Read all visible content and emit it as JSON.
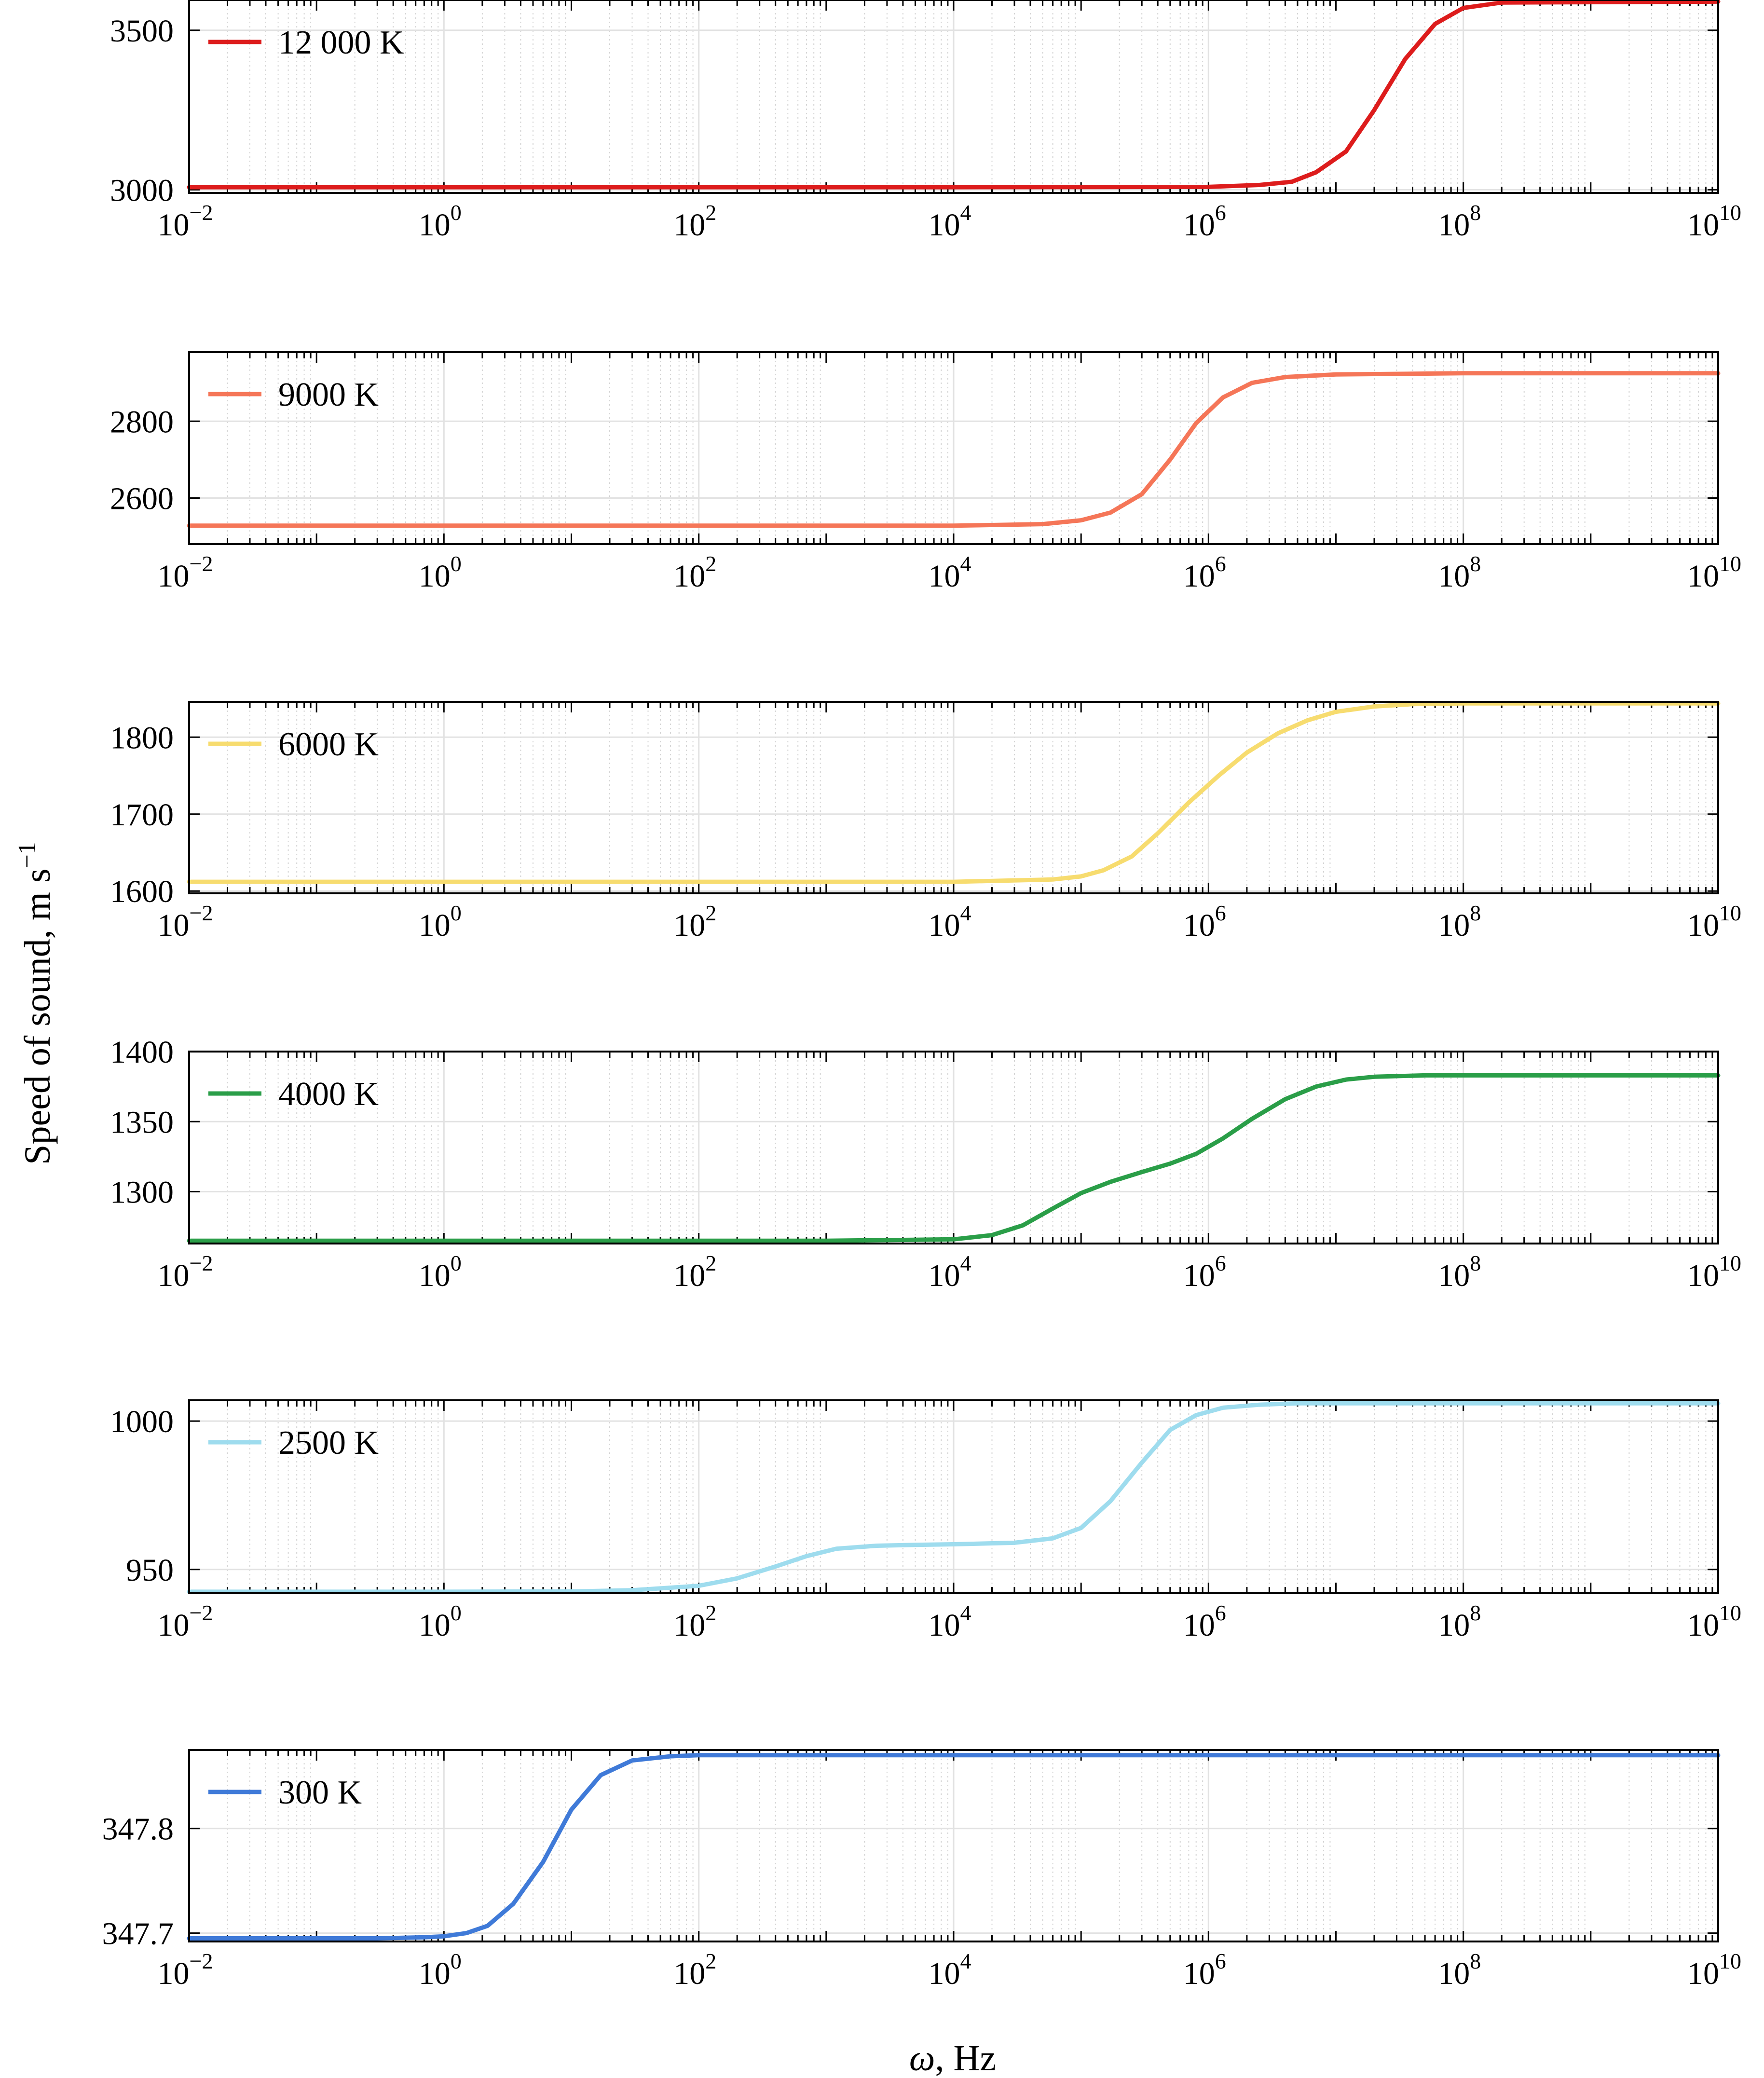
{
  "figure": {
    "ylabel": "Speed of sound, m s",
    "ylabel_sup": "−1",
    "xlabel_symbol": "ω",
    "xlabel_unit": ", Hz"
  },
  "chart_data": [
    {
      "type": "line",
      "legend": "12 000 K",
      "color": "#dd1c1c",
      "xscale": "log",
      "xlim": [
        0.01,
        10000000000
      ],
      "ylim": [
        2990,
        3595
      ],
      "yticks": [
        3000,
        3500
      ],
      "ytick_labels": [
        "3000",
        "3500"
      ],
      "x": [
        0.01,
        1,
        100,
        10000,
        1000000,
        2500000,
        4500000,
        7000000,
        12000000,
        20000000,
        35000000,
        60000000,
        100000000,
        200000000,
        10000000000
      ],
      "y": [
        3008,
        3008,
        3008,
        3008,
        3009,
        3015,
        3025,
        3055,
        3120,
        3250,
        3410,
        3520,
        3570,
        3587,
        3590
      ]
    },
    {
      "type": "line",
      "legend": "9000 K",
      "color": "#f57658",
      "xscale": "log",
      "xlim": [
        0.01,
        10000000000
      ],
      "ylim": [
        2480,
        2980
      ],
      "yticks": [
        2600,
        2800
      ],
      "ytick_labels": [
        "2600",
        "2800"
      ],
      "x": [
        0.01,
        1,
        100,
        10000,
        50000,
        100000,
        170000,
        300000,
        500000,
        800000,
        1300000,
        2200000,
        4000000,
        10000000,
        100000000,
        10000000000
      ],
      "y": [
        2528,
        2528,
        2528,
        2528,
        2532,
        2542,
        2562,
        2610,
        2700,
        2795,
        2862,
        2900,
        2915,
        2922,
        2925,
        2925
      ]
    },
    {
      "type": "line",
      "legend": "6000 K",
      "color": "#f7dc6f",
      "xscale": "log",
      "xlim": [
        0.01,
        10000000000
      ],
      "ylim": [
        1597,
        1846
      ],
      "yticks": [
        1600,
        1700,
        1800
      ],
      "ytick_labels": [
        "1600",
        "1700",
        "1800"
      ],
      "x": [
        0.01,
        1,
        100,
        10000,
        60000,
        100000,
        150000,
        250000,
        400000,
        700000,
        1200000,
        2000000,
        3500000,
        6000000,
        10000000,
        20000000,
        40000000,
        100000000,
        10000000000
      ],
      "y": [
        1612,
        1612,
        1612,
        1612,
        1615,
        1619,
        1627,
        1645,
        1675,
        1715,
        1750,
        1780,
        1805,
        1822,
        1833,
        1840,
        1843,
        1844,
        1844
      ]
    },
    {
      "type": "line",
      "legend": "4000 K",
      "color": "#2a9e48",
      "xscale": "log",
      "xlim": [
        0.01,
        10000000000
      ],
      "ylim": [
        1263,
        1400
      ],
      "yticks": [
        1300,
        1350,
        1400
      ],
      "ytick_labels": [
        "1300",
        "1350",
        "1400"
      ],
      "x": [
        0.01,
        1,
        100,
        1000,
        10000,
        20000,
        35000,
        60000,
        100000,
        170000,
        300000,
        500000,
        800000,
        1300000,
        2200000,
        4000000,
        7000000,
        12000000,
        20000000,
        50000000,
        100000000,
        10000000000
      ],
      "y": [
        1265,
        1265,
        1265,
        1265,
        1266,
        1269,
        1276,
        1288,
        1299,
        1307,
        1314,
        1320,
        1327,
        1338,
        1352,
        1366,
        1375,
        1380,
        1382,
        1383,
        1383,
        1383
      ]
    },
    {
      "type": "line",
      "legend": "2500 K",
      "color": "#9edcee",
      "xscale": "log",
      "xlim": [
        0.01,
        10000000000
      ],
      "ylim": [
        942,
        1007
      ],
      "yticks": [
        950,
        1000
      ],
      "ytick_labels": [
        "950",
        "1000"
      ],
      "x": [
        0.01,
        1,
        10,
        30,
        100,
        200,
        400,
        700,
        1200,
        2500,
        5000,
        10000,
        30000,
        60000,
        100000,
        170000,
        300000,
        500000,
        800000,
        1300000,
        2500000,
        5000000,
        100000000,
        10000000000
      ],
      "y": [
        942.5,
        942.5,
        942.6,
        943,
        944.5,
        947,
        951,
        954.5,
        957,
        958,
        958.3,
        958.5,
        959,
        960.5,
        964,
        973,
        986,
        997,
        1002,
        1004.5,
        1005.5,
        1006,
        1006,
        1006
      ]
    },
    {
      "type": "line",
      "legend": "300 K",
      "color": "#3f7ad8",
      "xscale": "log",
      "xlim": [
        0.01,
        10000000000
      ],
      "ylim": [
        347.692,
        347.875
      ],
      "yticks": [
        347.7,
        347.8
      ],
      "ytick_labels": [
        "347.7",
        "347.8"
      ],
      "x": [
        0.01,
        0.3,
        0.7,
        1,
        1.5,
        2.2,
        3.5,
        6,
        10,
        17,
        30,
        60,
        100,
        1000,
        10000000000
      ],
      "y": [
        347.695,
        347.695,
        347.696,
        347.697,
        347.7,
        347.707,
        347.728,
        347.768,
        347.818,
        347.851,
        347.865,
        347.869,
        347.87,
        347.87,
        347.87
      ]
    }
  ]
}
